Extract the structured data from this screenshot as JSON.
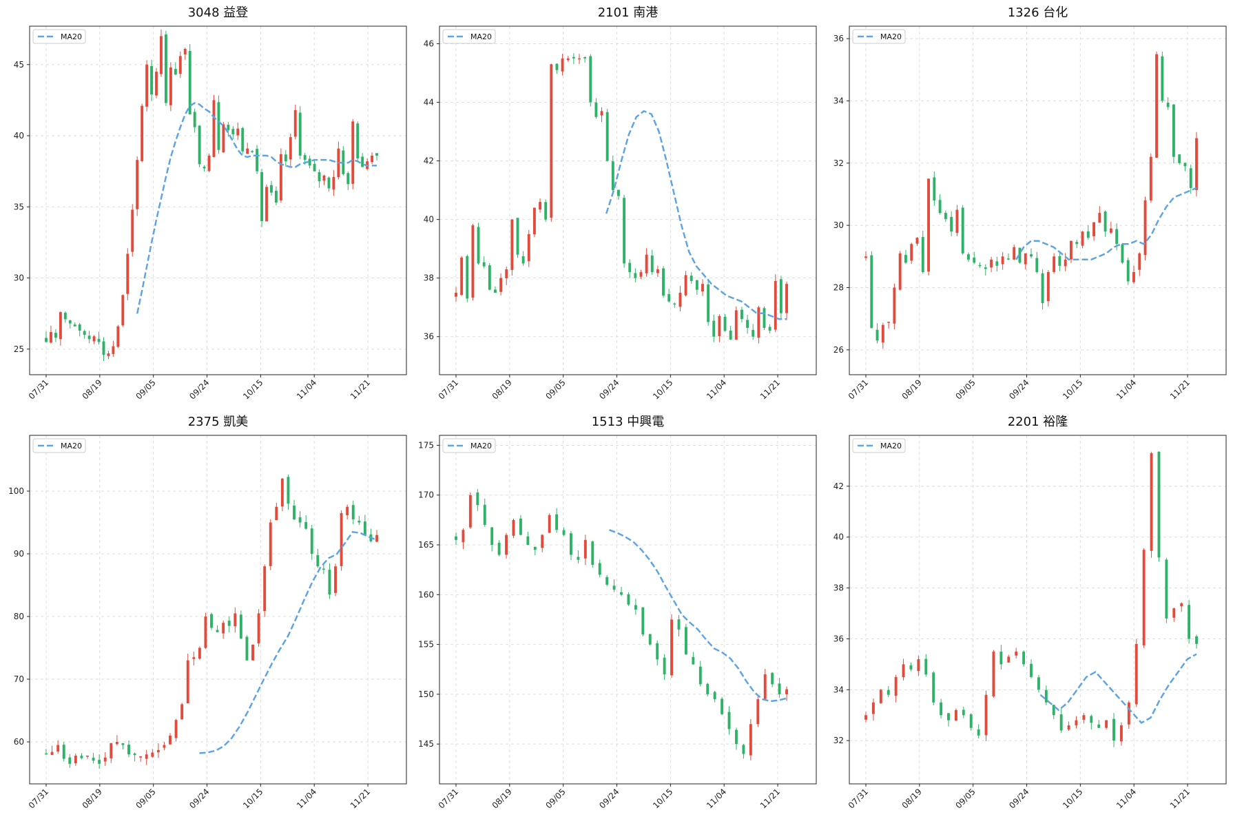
{
  "figure": {
    "colors": {
      "up": "#e24a3b",
      "down": "#2eb267",
      "ma": "#5fa4e2",
      "grid": "#dddddd",
      "frame": "#222222"
    },
    "legend_position": "top-left",
    "grid": true
  },
  "chart_data": [
    {
      "type": "candlestick",
      "title": "3048 益登",
      "legend": [
        "MA20"
      ],
      "xtick_labels": [
        "07/31",
        "08/19",
        "09/05",
        "09/24",
        "10/15",
        "11/04",
        "11/21"
      ],
      "xtick_index": [
        0,
        12,
        24,
        36,
        48,
        60,
        72
      ],
      "ylim": [
        23.2,
        47.7
      ],
      "yticks": [
        25,
        30,
        35,
        40,
        45
      ],
      "closes": [
        25.5,
        26.2,
        25.8,
        27.6,
        27.1,
        26.8,
        26.6,
        26.3,
        26.0,
        25.7,
        25.9,
        25.5,
        24.6,
        24.7,
        25.2,
        26.6,
        28.8,
        31.7,
        34.8,
        38.3,
        42.1,
        45.0,
        42.9,
        44.5,
        47.0,
        42.3,
        44.8,
        44.3,
        45.6,
        46.1,
        41.5,
        40.6,
        38.0,
        37.7,
        38.6,
        42.5,
        39.0,
        40.8,
        40.4,
        40.1,
        40.5,
        38.9,
        39.1,
        38.9,
        37.5,
        34.0,
        36.4,
        36.0,
        35.3,
        38.7,
        38.2,
        39.9,
        41.8,
        38.6,
        38.3,
        37.9,
        37.5,
        36.8,
        37.2,
        36.3,
        37.1,
        39.1,
        37.3,
        36.6,
        41.0,
        38.4,
        37.8,
        38.2,
        38.6,
        38.6
      ],
      "ma20": [
        null,
        null,
        null,
        null,
        null,
        null,
        null,
        null,
        null,
        null,
        null,
        null,
        null,
        null,
        null,
        null,
        null,
        null,
        null,
        27.5,
        29.1,
        30.8,
        32.5,
        34.1,
        35.6,
        37.1,
        38.5,
        39.6,
        40.6,
        41.5,
        42.1,
        42.3,
        42.2,
        41.9,
        41.7,
        41.3,
        41.0,
        40.7,
        40.2,
        39.6,
        39.0,
        38.6,
        38.5,
        38.6,
        38.6,
        38.6,
        38.6,
        38.5,
        38.2,
        38.0,
        37.9,
        37.8,
        37.8,
        38.0,
        38.1,
        38.2,
        38.3,
        38.3,
        38.3,
        38.3,
        38.2,
        38.1,
        38.1,
        38.1,
        38.3,
        38.2,
        38.0,
        37.9,
        37.9,
        37.9
      ]
    },
    {
      "type": "candlestick",
      "title": "2101 南港",
      "legend": [
        "MA20"
      ],
      "xtick_labels": [
        "07/31",
        "08/19",
        "09/05",
        "09/24",
        "10/15",
        "11/04",
        "11/21"
      ],
      "xtick_index": [
        0,
        12,
        24,
        36,
        48,
        60,
        72
      ],
      "ylim": [
        34.7,
        46.6
      ],
      "yticks": [
        36,
        38,
        40,
        42,
        44,
        46
      ],
      "closes": [
        37.5,
        38.7,
        37.3,
        39.8,
        38.5,
        38.4,
        37.6,
        37.5,
        38.0,
        38.3,
        40.0,
        38.8,
        38.5,
        39.5,
        40.4,
        40.6,
        40.0,
        45.3,
        45.1,
        45.5,
        45.5,
        45.5,
        45.5,
        45.5,
        44.0,
        43.5,
        43.7,
        42.0,
        41.0,
        40.8,
        38.5,
        38.2,
        38.0,
        38.2,
        38.8,
        38.2,
        38.3,
        37.4,
        37.2,
        37.1,
        37.5,
        38.1,
        37.9,
        37.6,
        37.8,
        36.5,
        36.0,
        36.7,
        36.2,
        35.9,
        36.9,
        36.6,
        36.3,
        36.0,
        37.0,
        36.3,
        36.2,
        37.9,
        36.8,
        37.8
      ],
      "ma20": [
        null,
        null,
        null,
        null,
        null,
        null,
        null,
        null,
        null,
        null,
        null,
        null,
        null,
        null,
        null,
        null,
        null,
        null,
        null,
        null,
        40.2,
        41.0,
        42.0,
        42.9,
        43.5,
        43.7,
        43.6,
        43.0,
        42.0,
        40.9,
        39.8,
        38.9,
        38.4,
        38.1,
        37.8,
        37.6,
        37.4,
        37.3,
        37.2,
        37.0,
        36.8,
        36.8,
        36.7,
        36.6,
        36.6
      ]
    },
    {
      "type": "candlestick",
      "title": "1326 台化",
      "legend": [
        "MA20"
      ],
      "xtick_labels": [
        "07/31",
        "08/19",
        "09/05",
        "09/24",
        "10/15",
        "11/04",
        "11/21"
      ],
      "xtick_index": [
        0,
        12,
        24,
        36,
        48,
        60,
        72
      ],
      "ylim": [
        25.2,
        36.4
      ],
      "yticks": [
        26,
        28,
        30,
        32,
        34,
        36
      ],
      "closes": [
        29.0,
        26.7,
        26.3,
        26.8,
        26.9,
        28.0,
        29.1,
        28.8,
        29.4,
        29.6,
        28.5,
        31.5,
        30.8,
        30.4,
        30.2,
        29.8,
        30.5,
        29.1,
        28.9,
        28.8,
        28.7,
        28.6,
        28.9,
        28.7,
        29.0,
        28.9,
        29.3,
        28.8,
        29.1,
        29.0,
        28.5,
        27.5,
        28.5,
        29.0,
        28.7,
        28.9,
        29.5,
        29.4,
        29.8,
        29.6,
        30.1,
        30.4,
        29.8,
        29.9,
        29.4,
        28.8,
        28.2,
        28.5,
        29.1,
        30.8,
        32.2,
        35.5,
        34.0,
        33.8,
        32.2,
        32.0,
        31.9,
        31.2,
        32.8
      ],
      "ma20": [
        null,
        null,
        null,
        null,
        null,
        null,
        null,
        null,
        null,
        null,
        null,
        null,
        null,
        null,
        null,
        null,
        null,
        null,
        null,
        null,
        28.9,
        29.3,
        29.5,
        29.5,
        29.4,
        29.3,
        29.1,
        28.9,
        28.9,
        28.9,
        28.9,
        29.0,
        29.1,
        29.3,
        29.4,
        29.4,
        29.5,
        29.4,
        29.7,
        30.2,
        30.6,
        30.9,
        31.0,
        31.1,
        31.2
      ]
    },
    {
      "type": "candlestick",
      "title": "2375 凱美",
      "legend": [
        "MA20"
      ],
      "xtick_labels": [
        "07/31",
        "08/19",
        "09/05",
        "09/24",
        "10/15",
        "11/04",
        "11/21"
      ],
      "xtick_index": [
        0,
        12,
        24,
        36,
        48,
        60,
        72
      ],
      "ylim": [
        53.3,
        108.9
      ],
      "yticks": [
        60,
        70,
        80,
        90,
        100
      ],
      "closes": [
        58.0,
        58.4,
        59.5,
        57.3,
        56.5,
        57.8,
        57.4,
        57.8,
        57.0,
        56.5,
        57.5,
        59.8,
        60.0,
        59.5,
        58.0,
        57.9,
        57.7,
        58.0,
        58.3,
        58.7,
        59.5,
        61.0,
        63.5,
        66.0,
        73.0,
        73.5,
        75.0,
        80.0,
        78.2,
        77.5,
        79.0,
        78.5,
        80.5,
        76.5,
        73.0,
        75.5,
        80.5,
        88.0,
        95.0,
        97.5,
        102.0,
        98.0,
        95.5,
        95.0,
        94.0,
        90.0,
        88.0,
        87.5,
        83.5,
        88.0,
        96.5,
        97.5,
        95.5,
        95.0,
        93.0,
        92.0,
        93.0
      ],
      "ma20": [
        null,
        null,
        null,
        null,
        null,
        null,
        null,
        null,
        null,
        null,
        null,
        null,
        null,
        null,
        null,
        null,
        null,
        null,
        null,
        58.2,
        58.3,
        58.6,
        59.3,
        60.6,
        62.5,
        64.8,
        67.4,
        70.0,
        72.5,
        74.8,
        76.9,
        79.7,
        82.7,
        85.5,
        87.8,
        89.3,
        89.9,
        91.6,
        93.5,
        93.3,
        92.7,
        92.2
      ]
    },
    {
      "type": "candlestick",
      "title": "1513 中興電",
      "legend": [
        "MA20"
      ],
      "xtick_labels": [
        "07/31",
        "08/19",
        "09/05",
        "09/24",
        "10/15",
        "11/04",
        "11/21"
      ],
      "xtick_index": [
        0,
        12,
        24,
        36,
        48,
        60,
        72
      ],
      "ylim": [
        141.0,
        176.0
      ],
      "yticks": [
        145,
        150,
        155,
        160,
        165,
        170,
        175
      ],
      "closes": [
        165.5,
        166.5,
        170.0,
        169.0,
        167.0,
        165.0,
        164.0,
        166.0,
        167.5,
        166.0,
        165.0,
        164.5,
        166.0,
        168.0,
        166.5,
        166.0,
        164.0,
        163.5,
        165.5,
        163.0,
        162.0,
        161.0,
        160.5,
        160.0,
        159.0,
        158.5,
        156.0,
        155.0,
        153.5,
        152.0,
        157.5,
        156.5,
        154.0,
        153.0,
        151.0,
        150.0,
        149.5,
        148.0,
        146.5,
        145.0,
        144.0,
        147.0,
        149.5,
        152.0,
        151.0,
        150.0,
        150.5
      ],
      "ma20": [
        null,
        null,
        null,
        null,
        null,
        null,
        null,
        null,
        null,
        null,
        null,
        null,
        null,
        null,
        null,
        null,
        null,
        null,
        null,
        166.5,
        166.2,
        165.8,
        165.3,
        164.5,
        163.5,
        162.3,
        160.8,
        159.4,
        158.0,
        157.2,
        156.5,
        155.5,
        154.6,
        154.2,
        153.6,
        152.6,
        151.3,
        150.2,
        149.5,
        149.3,
        149.4,
        149.6
      ]
    },
    {
      "type": "candlestick",
      "title": "2201 裕隆",
      "legend": [
        "MA20"
      ],
      "xtick_labels": [
        "07/31",
        "08/19",
        "09/05",
        "09/24",
        "10/15",
        "11/04",
        "11/21"
      ],
      "xtick_index": [
        0,
        12,
        24,
        36,
        48,
        60,
        72
      ],
      "ylim": [
        30.3,
        44.0
      ],
      "yticks": [
        32,
        34,
        36,
        38,
        40,
        42
      ],
      "closes": [
        33.0,
        33.5,
        34.0,
        33.8,
        34.5,
        35.0,
        34.8,
        35.2,
        34.6,
        33.5,
        33.0,
        32.8,
        33.2,
        33.0,
        32.5,
        32.2,
        33.8,
        35.5,
        35.0,
        35.3,
        35.5,
        35.0,
        34.5,
        34.0,
        33.5,
        33.0,
        32.4,
        32.6,
        32.8,
        33.0,
        32.7,
        32.5,
        32.8,
        32.0,
        32.6,
        33.5,
        35.8,
        39.5,
        43.3,
        39.2,
        36.8,
        37.2,
        37.4,
        36.0,
        35.8
      ],
      "ma20": [
        null,
        null,
        null,
        null,
        null,
        null,
        null,
        null,
        null,
        null,
        null,
        null,
        null,
        null,
        null,
        null,
        null,
        null,
        null,
        33.8,
        33.5,
        33.2,
        33.5,
        34.0,
        34.5,
        34.7,
        34.3,
        33.9,
        33.5,
        33.1,
        32.7,
        32.9,
        33.6,
        34.2,
        34.7,
        35.2,
        35.4
      ]
    }
  ]
}
